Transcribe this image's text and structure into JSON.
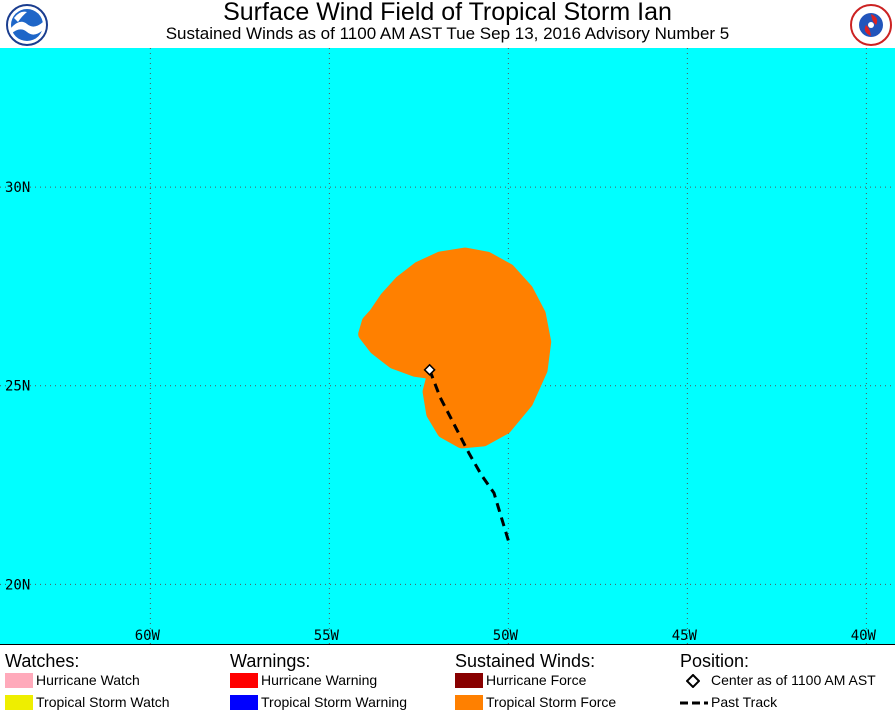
{
  "header": {
    "title": "Surface Wind Field of Tropical Storm Ian",
    "subtitle": "Sustained Winds as of 1100 AM AST Tue Sep 13, 2016    Advisory Number 5",
    "logo_left_icon": "noaa-logo-icon",
    "logo_right_icon": "national-weather-service-logo-icon"
  },
  "map": {
    "ocean_color": "#00ffff",
    "grid_color": "#555555",
    "lat_range": [
      18.5,
      33.5
    ],
    "lon_range": [
      -64.2,
      -39.2
    ],
    "latitude_labels": [
      {
        "value": 30,
        "label": "30N"
      },
      {
        "value": 25,
        "label": "25N"
      },
      {
        "value": 20,
        "label": "20N"
      }
    ],
    "longitude_labels": [
      {
        "value": -60,
        "label": "60W"
      },
      {
        "value": -55,
        "label": "55W"
      },
      {
        "value": -50,
        "label": "50W"
      },
      {
        "value": -45,
        "label": "45W"
      },
      {
        "value": -40,
        "label": "40W"
      }
    ],
    "tropical_storm_force_color": "#ff8000",
    "tropical_storm_force_area": [
      [
        -53.9,
        26.6
      ],
      [
        -53.7,
        26.8
      ],
      [
        -53.4,
        27.2
      ],
      [
        -53.0,
        27.6
      ],
      [
        -52.5,
        27.95
      ],
      [
        -51.9,
        28.2
      ],
      [
        -51.2,
        28.3
      ],
      [
        -50.6,
        28.2
      ],
      [
        -50.0,
        27.9
      ],
      [
        -49.5,
        27.4
      ],
      [
        -49.15,
        26.8
      ],
      [
        -49.0,
        26.1
      ],
      [
        -49.1,
        25.4
      ],
      [
        -49.5,
        24.6
      ],
      [
        -50.1,
        23.95
      ],
      [
        -50.7,
        23.65
      ],
      [
        -51.3,
        23.6
      ],
      [
        -51.8,
        23.85
      ],
      [
        -52.1,
        24.3
      ],
      [
        -52.2,
        24.85
      ],
      [
        -52.1,
        25.2
      ],
      [
        -52.2,
        25.35
      ],
      [
        -52.6,
        25.4
      ],
      [
        -53.2,
        25.6
      ],
      [
        -53.7,
        25.95
      ],
      [
        -54.0,
        26.3
      ]
    ],
    "center": {
      "lon": -52.2,
      "lat": 25.4
    },
    "past_track": [
      [
        -52.2,
        25.4
      ],
      [
        -51.9,
        24.7
      ],
      [
        -51.5,
        24.0
      ],
      [
        -51.1,
        23.3
      ],
      [
        -50.75,
        22.75
      ],
      [
        -50.4,
        22.3
      ],
      [
        -50.2,
        21.7
      ],
      [
        -50.0,
        21.1
      ]
    ]
  },
  "legend": {
    "watches": {
      "heading": "Watches:",
      "items": [
        {
          "label": "Hurricane Watch",
          "color": "#ffaabb"
        },
        {
          "label": "Tropical Storm Watch",
          "color": "#eeee00"
        }
      ]
    },
    "warnings": {
      "heading": "Warnings:",
      "items": [
        {
          "label": "Hurricane Warning",
          "color": "#ff0000"
        },
        {
          "label": "Tropical Storm Warning",
          "color": "#0000ff"
        }
      ]
    },
    "sustained_winds": {
      "heading": "Sustained Winds:",
      "items": [
        {
          "label": "Hurricane Force",
          "color": "#880000"
        },
        {
          "label": "Tropical Storm Force",
          "color": "#ff8000"
        }
      ]
    },
    "position": {
      "heading": "Position:",
      "center_label": "Center as of 1100 AM AST",
      "track_label": "Past Track",
      "center_icon": "diamond-icon",
      "track_icon": "dashed-line-icon"
    }
  }
}
